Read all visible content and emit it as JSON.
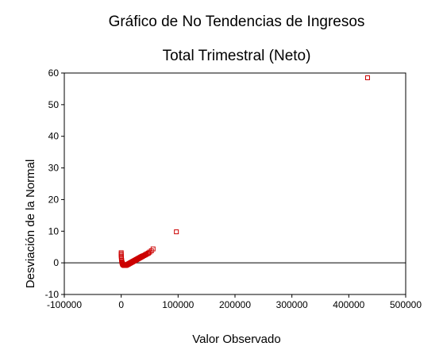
{
  "chart_data": {
    "type": "scatter",
    "title": "Gráfico de No Tendencias de Ingresos",
    "subtitle": "Total Trimestral (Neto)",
    "xlabel": "Valor Observado",
    "ylabel": "Desviación de la Normal",
    "xlim": [
      -100000,
      500000
    ],
    "ylim": [
      -10,
      60
    ],
    "x_ticks": [
      -100000,
      0,
      100000,
      200000,
      300000,
      400000,
      500000
    ],
    "y_ticks": [
      -10,
      0,
      10,
      20,
      30,
      40,
      50,
      60
    ],
    "grid": false,
    "legend": "none",
    "reference_line_y": 0,
    "marker": "open-square",
    "marker_color": "#cc0000",
    "series": [
      {
        "points": [
          [
            0,
            3.2
          ],
          [
            0,
            2.8
          ],
          [
            0,
            2.4
          ],
          [
            200,
            2.0
          ],
          [
            300,
            1.6
          ],
          [
            500,
            1.2
          ],
          [
            800,
            0.8
          ],
          [
            1000,
            0.4
          ],
          [
            1500,
            0.1
          ],
          [
            2000,
            -0.2
          ],
          [
            2500,
            -0.4
          ],
          [
            3000,
            -0.55
          ],
          [
            4000,
            -0.7
          ],
          [
            5000,
            -0.8
          ],
          [
            6000,
            -0.85
          ],
          [
            7000,
            -0.85
          ],
          [
            8000,
            -0.8
          ],
          [
            9000,
            -0.75
          ],
          [
            10000,
            -0.65
          ],
          [
            11000,
            -0.55
          ],
          [
            12000,
            -0.45
          ],
          [
            13000,
            -0.35
          ],
          [
            14000,
            -0.25
          ],
          [
            15000,
            -0.15
          ],
          [
            16000,
            -0.05
          ],
          [
            17000,
            0.05
          ],
          [
            18000,
            0.15
          ],
          [
            19000,
            0.25
          ],
          [
            20000,
            0.35
          ],
          [
            21000,
            0.45
          ],
          [
            22000,
            0.55
          ],
          [
            23000,
            0.65
          ],
          [
            24000,
            0.75
          ],
          [
            25000,
            0.85
          ],
          [
            26000,
            0.95
          ],
          [
            27000,
            1.05
          ],
          [
            28000,
            1.15
          ],
          [
            29000,
            1.25
          ],
          [
            30000,
            1.35
          ],
          [
            31000,
            1.45
          ],
          [
            32000,
            1.55
          ],
          [
            33000,
            1.65
          ],
          [
            34000,
            1.75
          ],
          [
            35000,
            1.85
          ],
          [
            36000,
            1.95
          ],
          [
            37000,
            2.05
          ],
          [
            38000,
            2.15
          ],
          [
            40000,
            2.3
          ],
          [
            42000,
            2.5
          ],
          [
            44000,
            2.7
          ],
          [
            46000,
            2.9
          ],
          [
            48000,
            3.1
          ],
          [
            50000,
            3.4
          ],
          [
            53000,
            3.8
          ],
          [
            56000,
            4.4
          ],
          [
            97000,
            9.8
          ],
          [
            433000,
            58.5
          ]
        ]
      }
    ]
  }
}
